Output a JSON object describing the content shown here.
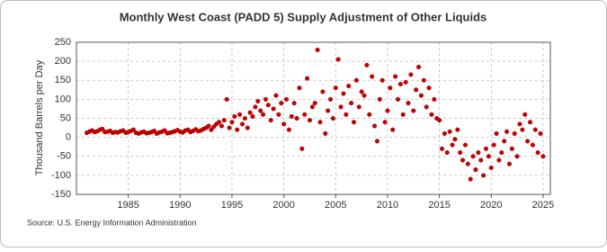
{
  "chart_data": {
    "type": "scatter",
    "title": "Monthly West Coast (PADD 5) Supply Adjustment of Other Liquids",
    "y_label": "Thousand Barrels per Day",
    "source": "Source: U.S. Energy Information Administration",
    "color": "#cc0000",
    "grid": true,
    "xlim": [
      1980,
      2025.7
    ],
    "xticks": [
      1985,
      1990,
      1995,
      2000,
      2005,
      2010,
      2015,
      2020,
      2025
    ],
    "ylim": [
      -150,
      250
    ],
    "yticks": [
      -150,
      -100,
      -50,
      0,
      50,
      100,
      150,
      200,
      250
    ],
    "x": [
      1981,
      1981.25,
      1981.5,
      1981.75,
      1982,
      1982.25,
      1982.5,
      1982.75,
      1983,
      1983.25,
      1983.5,
      1983.75,
      1984,
      1984.25,
      1984.5,
      1984.75,
      1985,
      1985.25,
      1985.5,
      1985.75,
      1986,
      1986.25,
      1986.5,
      1986.75,
      1987,
      1987.25,
      1987.5,
      1987.75,
      1988,
      1988.25,
      1988.5,
      1988.75,
      1989,
      1989.25,
      1989.5,
      1989.75,
      1990,
      1990.25,
      1990.5,
      1990.75,
      1991,
      1991.25,
      1991.5,
      1991.75,
      1992,
      1992.25,
      1992.5,
      1992.75,
      1993,
      1993.25,
      1993.5,
      1993.75,
      1994,
      1994.25,
      1994.5,
      1994.75,
      1995,
      1995.25,
      1995.5,
      1995.75,
      1996,
      1996.25,
      1996.5,
      1996.75,
      1997,
      1997.25,
      1997.5,
      1997.75,
      1998,
      1998.25,
      1998.5,
      1998.75,
      1999,
      1999.25,
      1999.5,
      1999.75,
      2000,
      2000.25,
      2000.5,
      2000.75,
      2001,
      2001.25,
      2001.5,
      2001.75,
      2002,
      2002.25,
      2002.5,
      2002.75,
      2003,
      2003.25,
      2003.5,
      2003.75,
      2004,
      2004.25,
      2004.5,
      2004.75,
      2005,
      2005.25,
      2005.5,
      2005.75,
      2006,
      2006.25,
      2006.5,
      2006.75,
      2007,
      2007.25,
      2007.5,
      2007.75,
      2008,
      2008.25,
      2008.5,
      2008.75,
      2009,
      2009.25,
      2009.5,
      2009.75,
      2010,
      2010.25,
      2010.5,
      2010.75,
      2011,
      2011.25,
      2011.5,
      2011.75,
      2012,
      2012.25,
      2012.5,
      2012.75,
      2013,
      2013.25,
      2013.5,
      2013.75,
      2014,
      2014.25,
      2014.5,
      2014.75,
      2015,
      2015.25,
      2015.5,
      2015.75,
      2016,
      2016.25,
      2016.5,
      2016.75,
      2017,
      2017.25,
      2017.5,
      2017.75,
      2018,
      2018.25,
      2018.5,
      2018.75,
      2019,
      2019.25,
      2019.5,
      2019.75,
      2020,
      2020.25,
      2020.5,
      2020.75,
      2021,
      2021.25,
      2021.5,
      2021.75,
      2022,
      2022.25,
      2022.5,
      2022.75,
      2023,
      2023.25,
      2023.5,
      2023.75,
      2024,
      2024.25,
      2024.5,
      2024.75,
      2025
    ],
    "values": [
      12,
      15,
      18,
      14,
      16,
      20,
      22,
      14,
      15,
      17,
      12,
      14,
      13,
      16,
      18,
      12,
      14,
      17,
      20,
      12,
      10,
      13,
      15,
      11,
      12,
      14,
      17,
      10,
      13,
      15,
      18,
      11,
      12,
      14,
      16,
      19,
      15,
      13,
      18,
      20,
      14,
      17,
      21,
      16,
      18,
      22,
      25,
      30,
      20,
      28,
      35,
      40,
      30,
      45,
      100,
      25,
      40,
      55,
      20,
      60,
      35,
      50,
      25,
      65,
      55,
      80,
      95,
      70,
      60,
      100,
      85,
      45,
      75,
      110,
      60,
      90,
      35,
      100,
      20,
      55,
      90,
      50,
      130,
      -30,
      60,
      155,
      45,
      80,
      90,
      230,
      40,
      120,
      10,
      70,
      100,
      50,
      130,
      205,
      80,
      115,
      60,
      135,
      90,
      40,
      150,
      80,
      120,
      110,
      190,
      60,
      160,
      30,
      -10,
      100,
      150,
      40,
      70,
      130,
      20,
      160,
      100,
      140,
      60,
      145,
      90,
      165,
      70,
      125,
      185,
      110,
      150,
      80,
      130,
      60,
      100,
      50,
      45,
      -30,
      10,
      -40,
      15,
      -20,
      -5,
      20,
      -40,
      -60,
      -20,
      -70,
      -110,
      -50,
      -85,
      -40,
      -60,
      -100,
      -30,
      -50,
      -80,
      -20,
      10,
      -60,
      -40,
      -10,
      15,
      -70,
      -30,
      10,
      -50,
      35,
      20,
      60,
      -10,
      40,
      -20,
      20,
      -40,
      10,
      -50
    ]
  }
}
